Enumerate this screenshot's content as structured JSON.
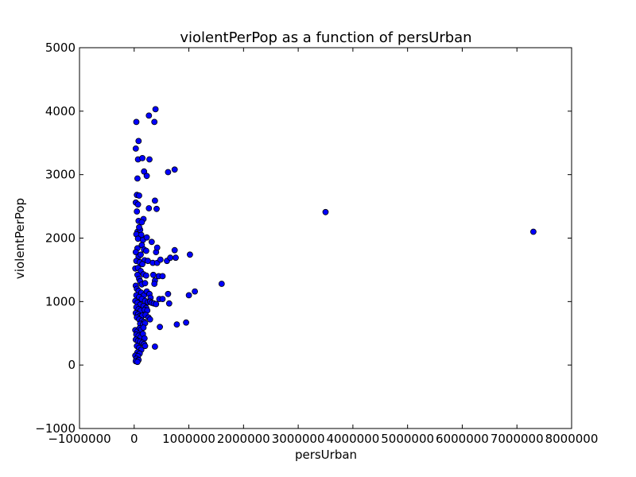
{
  "chart_data": {
    "type": "scatter",
    "title": "violentPerPop as a function of persUrban",
    "xlabel": "persUrban",
    "ylabel": "violentPerPop",
    "xlim": [
      -1000000,
      8000000
    ],
    "ylim": [
      -1000,
      5000
    ],
    "xticks": [
      -1000000,
      0,
      1000000,
      2000000,
      3000000,
      4000000,
      5000000,
      6000000,
      7000000,
      8000000
    ],
    "xtick_labels": [
      "−1000000",
      "0",
      "1000000",
      "2000000",
      "3000000",
      "4000000",
      "5000000",
      "6000000",
      "7000000",
      "8000000"
    ],
    "yticks": [
      -1000,
      0,
      1000,
      2000,
      3000,
      4000,
      5000
    ],
    "ytick_labels": [
      "−1000",
      "0",
      "1000",
      "2000",
      "3000",
      "4000",
      "5000"
    ],
    "grid": false,
    "marker_color": "#0000ff",
    "marker_edge": "#000000",
    "points": [
      [
        40000,
        3830
      ],
      [
        80000,
        3530
      ],
      [
        30000,
        3410
      ],
      [
        70000,
        3240
      ],
      [
        150000,
        3260
      ],
      [
        180000,
        3050
      ],
      [
        230000,
        2980
      ],
      [
        60000,
        2940
      ],
      [
        280000,
        3240
      ],
      [
        270000,
        3930
      ],
      [
        370000,
        3830
      ],
      [
        390000,
        4030
      ],
      [
        620000,
        3040
      ],
      [
        740000,
        3080
      ],
      [
        50000,
        2680
      ],
      [
        90000,
        2670
      ],
      [
        30000,
        2560
      ],
      [
        70000,
        2530
      ],
      [
        50000,
        2420
      ],
      [
        80000,
        2270
      ],
      [
        170000,
        2300
      ],
      [
        140000,
        2250
      ],
      [
        270000,
        2470
      ],
      [
        380000,
        2590
      ],
      [
        410000,
        2460
      ],
      [
        60000,
        2100
      ],
      [
        40000,
        2060
      ],
      [
        110000,
        2130
      ],
      [
        90000,
        2170
      ],
      [
        130000,
        2050
      ],
      [
        70000,
        1990
      ],
      [
        160000,
        1970
      ],
      [
        230000,
        2010
      ],
      [
        320000,
        1940
      ],
      [
        140000,
        1890
      ],
      [
        180000,
        1820
      ],
      [
        60000,
        1840
      ],
      [
        220000,
        1800
      ],
      [
        400000,
        1780
      ],
      [
        420000,
        1850
      ],
      [
        740000,
        1810
      ],
      [
        1020000,
        1740
      ],
      [
        30000,
        1780
      ],
      [
        80000,
        1710
      ],
      [
        120000,
        1740
      ],
      [
        190000,
        1650
      ],
      [
        250000,
        1640
      ],
      [
        40000,
        1640
      ],
      [
        100000,
        1620
      ],
      [
        150000,
        1590
      ],
      [
        340000,
        1610
      ],
      [
        420000,
        1610
      ],
      [
        480000,
        1660
      ],
      [
        600000,
        1640
      ],
      [
        660000,
        1690
      ],
      [
        760000,
        1690
      ],
      [
        20000,
        1520
      ],
      [
        70000,
        1530
      ],
      [
        120000,
        1480
      ],
      [
        170000,
        1430
      ],
      [
        220000,
        1410
      ],
      [
        350000,
        1420
      ],
      [
        450000,
        1400
      ],
      [
        520000,
        1400
      ],
      [
        60000,
        1420
      ],
      [
        90000,
        1360
      ],
      [
        110000,
        1320
      ],
      [
        140000,
        1270
      ],
      [
        200000,
        1290
      ],
      [
        380000,
        1330
      ],
      [
        370000,
        1280
      ],
      [
        1600000,
        1280
      ],
      [
        30000,
        1250
      ],
      [
        50000,
        1200
      ],
      [
        80000,
        1170
      ],
      [
        130000,
        1140
      ],
      [
        180000,
        1100
      ],
      [
        230000,
        1160
      ],
      [
        280000,
        1120
      ],
      [
        300000,
        1060
      ],
      [
        620000,
        1120
      ],
      [
        1000000,
        1100
      ],
      [
        1110000,
        1160
      ],
      [
        40000,
        1100
      ],
      [
        90000,
        1070
      ],
      [
        140000,
        1040
      ],
      [
        200000,
        1010
      ],
      [
        250000,
        990
      ],
      [
        290000,
        1000
      ],
      [
        320000,
        980
      ],
      [
        360000,
        970
      ],
      [
        400000,
        960
      ],
      [
        460000,
        1040
      ],
      [
        520000,
        1040
      ],
      [
        640000,
        970
      ],
      [
        20000,
        1010
      ],
      [
        60000,
        980
      ],
      [
        110000,
        950
      ],
      [
        170000,
        930
      ],
      [
        220000,
        900
      ],
      [
        40000,
        910
      ],
      [
        80000,
        880
      ],
      [
        120000,
        860
      ],
      [
        190000,
        870
      ],
      [
        240000,
        860
      ],
      [
        30000,
        820
      ],
      [
        70000,
        800
      ],
      [
        100000,
        770
      ],
      [
        150000,
        780
      ],
      [
        210000,
        790
      ],
      [
        260000,
        750
      ],
      [
        290000,
        720
      ],
      [
        50000,
        750
      ],
      [
        90000,
        720
      ],
      [
        140000,
        700
      ],
      [
        180000,
        680
      ],
      [
        110000,
        650
      ],
      [
        160000,
        640
      ],
      [
        200000,
        660
      ],
      [
        470000,
        600
      ],
      [
        780000,
        640
      ],
      [
        950000,
        670
      ],
      [
        20000,
        550
      ],
      [
        60000,
        530
      ],
      [
        100000,
        580
      ],
      [
        130000,
        560
      ],
      [
        170000,
        590
      ],
      [
        40000,
        480
      ],
      [
        80000,
        460
      ],
      [
        120000,
        440
      ],
      [
        160000,
        490
      ],
      [
        190000,
        420
      ],
      [
        30000,
        400
      ],
      [
        70000,
        380
      ],
      [
        110000,
        370
      ],
      [
        150000,
        350
      ],
      [
        180000,
        330
      ],
      [
        200000,
        300
      ],
      [
        380000,
        290
      ],
      [
        50000,
        300
      ],
      [
        90000,
        270
      ],
      [
        130000,
        240
      ],
      [
        60000,
        200
      ],
      [
        100000,
        180
      ],
      [
        20000,
        150
      ],
      [
        70000,
        140
      ],
      [
        40000,
        100
      ],
      [
        80000,
        80
      ],
      [
        30000,
        60
      ],
      [
        60000,
        50
      ],
      [
        3500000,
        2410
      ],
      [
        7300000,
        2100
      ]
    ]
  }
}
